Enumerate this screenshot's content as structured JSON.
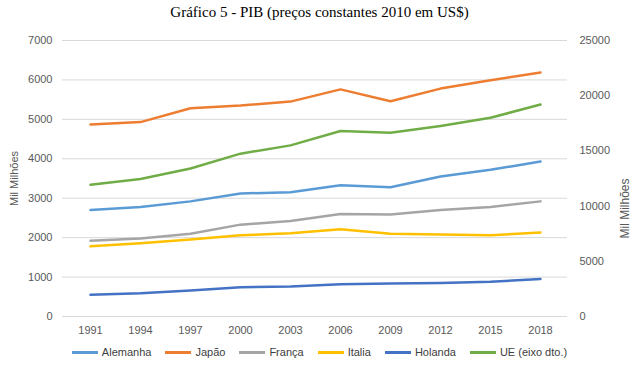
{
  "chart_data": {
    "type": "line",
    "title": "Gráfico 5 - PIB (preços constantes 2010 em US$)",
    "y_label": "Mil Milhões",
    "y2_label": "Mil Milhões",
    "categories": [
      "1991",
      "1994",
      "1997",
      "2000",
      "2003",
      "2006",
      "2009",
      "2012",
      "2015",
      "2018"
    ],
    "series": [
      {
        "name": "Alemanha",
        "color": "#5b9bd5",
        "values": [
          2700,
          2780,
          2920,
          3120,
          3150,
          3330,
          3280,
          3550,
          3720,
          3930
        ]
      },
      {
        "name": "Japão",
        "color": "#ed7d31",
        "values": [
          4870,
          4930,
          5280,
          5350,
          5450,
          5760,
          5460,
          5780,
          5990,
          6190
        ]
      },
      {
        "name": "França",
        "color": "#a5a5a5",
        "values": [
          1920,
          1980,
          2100,
          2330,
          2420,
          2600,
          2590,
          2700,
          2780,
          2920
        ]
      },
      {
        "name": "Italia",
        "color": "#ffc000",
        "values": [
          1780,
          1860,
          1950,
          2060,
          2110,
          2210,
          2100,
          2080,
          2060,
          2130
        ]
      },
      {
        "name": "Holanda",
        "color": "#4472c4",
        "values": [
          550,
          590,
          660,
          740,
          760,
          820,
          840,
          850,
          880,
          950
        ]
      },
      {
        "name": "UE (eixo dto.)",
        "color": "#70ad47",
        "axis": "y2",
        "values": [
          11930,
          12450,
          13400,
          14750,
          15500,
          16800,
          16650,
          17250,
          18000,
          19200
        ]
      }
    ],
    "ylim": [
      0,
      7000
    ],
    "yticks": [
      0,
      1000,
      2000,
      3000,
      4000,
      5000,
      6000,
      7000
    ],
    "y2lim": [
      0,
      25000
    ],
    "y2ticks": [
      0,
      5000,
      10000,
      15000,
      20000,
      25000
    ],
    "grid": true,
    "legend": "bottom"
  }
}
